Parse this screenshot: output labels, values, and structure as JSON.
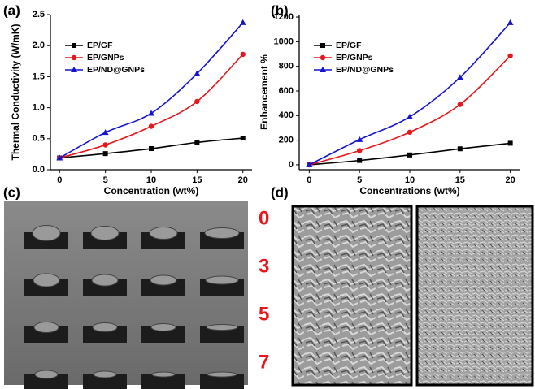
{
  "chart_data": [
    {
      "type": "line",
      "panel_label": "(a)",
      "x_label": "Concentration (wt%)",
      "y_label": "Thermal Conductivity (W/mK)",
      "x": [
        0,
        5,
        10,
        15,
        20
      ],
      "series": [
        {
          "name": "EP/GF",
          "color": "#000000",
          "marker": "square",
          "values": [
            0.19,
            0.26,
            0.34,
            0.44,
            0.51
          ]
        },
        {
          "name": "EP/GNPs",
          "color": "#e8161b",
          "marker": "circle",
          "values": [
            0.19,
            0.4,
            0.7,
            1.1,
            1.86
          ]
        },
        {
          "name": "EP/ND@GNPs",
          "color": "#1414d0",
          "marker": "triangle",
          "values": [
            0.19,
            0.6,
            0.91,
            1.55,
            2.37
          ]
        }
      ],
      "xlim": [
        -1,
        21
      ],
      "xticks": [
        0,
        5,
        10,
        15,
        20
      ],
      "ylim": [
        0,
        2.5
      ],
      "yticks": [
        {
          "value": 0,
          "label": "0.0"
        },
        0.5,
        {
          "value": 1,
          "label": "1.0"
        },
        1.5,
        {
          "value": 2,
          "label": "2.0"
        },
        2.5
      ],
      "legend": "upper left"
    },
    {
      "type": "line",
      "panel_label": "(b)",
      "x_label": "Concentrations (wt%)",
      "y_label": "Enhancement %",
      "x": [
        0,
        5,
        10,
        15,
        20
      ],
      "series": [
        {
          "name": "EP/GF",
          "color": "#000000",
          "marker": "square",
          "values": [
            0,
            35,
            80,
            130,
            175
          ]
        },
        {
          "name": "EP/GNPs",
          "color": "#e8161b",
          "marker": "circle",
          "values": [
            0,
            115,
            265,
            490,
            885
          ]
        },
        {
          "name": "EP/ND@GNPs",
          "color": "#1414d0",
          "marker": "triangle",
          "values": [
            0,
            205,
            390,
            710,
            1155
          ]
        }
      ],
      "xlim": [
        -1,
        21
      ],
      "xticks": [
        0,
        5,
        10,
        15,
        20
      ],
      "ylim": [
        -40,
        1220
      ],
      "yticks": [
        0,
        200,
        400,
        600,
        800,
        1000,
        1200
      ],
      "legend": "upper left"
    }
  ],
  "photos": {
    "c": {
      "label": "(c)",
      "row_labels": [
        "0",
        "3",
        "5",
        "7"
      ]
    },
    "d": {
      "label": "(d)"
    }
  }
}
